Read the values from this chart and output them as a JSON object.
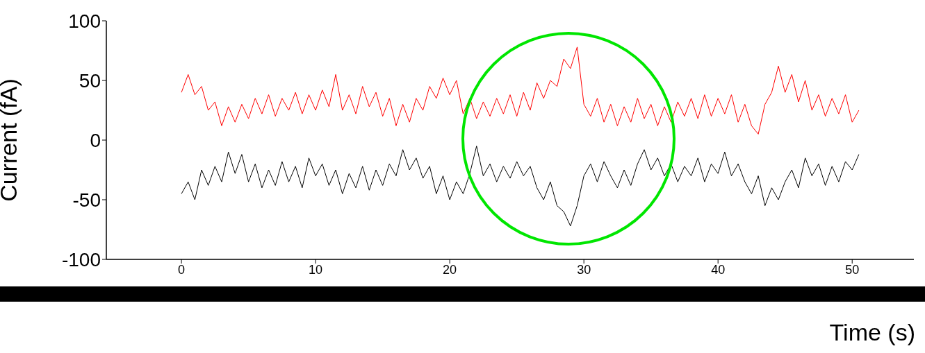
{
  "chart_data": {
    "type": "line",
    "xlabel": "Time (s)",
    "ylabel": "Current (fA)",
    "xlim": [
      -5.6,
      54.6
    ],
    "xticks": [
      0,
      10,
      20,
      30,
      40,
      50
    ],
    "ylim": [
      -100,
      100
    ],
    "yticks": [
      -100,
      -50,
      0,
      50,
      100
    ],
    "x": [
      0,
      0.5,
      1,
      1.5,
      2,
      2.5,
      3,
      3.5,
      4,
      4.5,
      5,
      5.5,
      6,
      6.5,
      7,
      7.5,
      8,
      8.5,
      9,
      9.5,
      10,
      10.5,
      11,
      11.5,
      12,
      12.5,
      13,
      13.5,
      14,
      14.5,
      15,
      15.5,
      16,
      16.5,
      17,
      17.5,
      18,
      18.5,
      19,
      19.5,
      20,
      20.5,
      21,
      21.5,
      22,
      22.5,
      23,
      23.5,
      24,
      24.5,
      25,
      25.5,
      26,
      26.5,
      27,
      27.5,
      28,
      28.5,
      29,
      29.5,
      30,
      30.5,
      31,
      31.5,
      32,
      32.5,
      33,
      33.5,
      34,
      34.5,
      35,
      35.5,
      36,
      36.5,
      37,
      37.5,
      38,
      38.5,
      39,
      39.5,
      40,
      40.5,
      41,
      41.5,
      42,
      42.5,
      43,
      43.5,
      44,
      44.5,
      45,
      45.5,
      46,
      46.5,
      47,
      47.5,
      48,
      48.5,
      49,
      49.5,
      50,
      50.5
    ],
    "series": [
      {
        "color": "#ff0000",
        "values": [
          40,
          55,
          38,
          45,
          25,
          32,
          12,
          28,
          15,
          30,
          18,
          35,
          22,
          38,
          20,
          35,
          25,
          40,
          22,
          38,
          25,
          42,
          28,
          55,
          25,
          38,
          22,
          45,
          28,
          40,
          20,
          35,
          12,
          30,
          15,
          35,
          25,
          45,
          35,
          52,
          38,
          50,
          22,
          35,
          18,
          32,
          20,
          35,
          22,
          38,
          20,
          40,
          25,
          48,
          35,
          50,
          45,
          68,
          60,
          78,
          30,
          20,
          35,
          15,
          30,
          12,
          28,
          15,
          35,
          18,
          30,
          12,
          28,
          15,
          32,
          20,
          35,
          18,
          38,
          20,
          35,
          22,
          38,
          15,
          30,
          12,
          5,
          30,
          40,
          62,
          40,
          55,
          32,
          50,
          25,
          38,
          20,
          35,
          22,
          38,
          15,
          25
        ]
      },
      {
        "color": "#000000",
        "values": [
          -45,
          -35,
          -50,
          -25,
          -38,
          -22,
          -35,
          -10,
          -28,
          -12,
          -35,
          -20,
          -40,
          -25,
          -38,
          -18,
          -35,
          -22,
          -40,
          -15,
          -30,
          -20,
          -38,
          -25,
          -45,
          -28,
          -40,
          -22,
          -42,
          -25,
          -38,
          -20,
          -30,
          -8,
          -25,
          -15,
          -32,
          -22,
          -45,
          -30,
          -50,
          -35,
          -45,
          -28,
          -5,
          -30,
          -20,
          -35,
          -22,
          -32,
          -18,
          -30,
          -22,
          -40,
          -50,
          -35,
          -55,
          -60,
          -72,
          -55,
          -30,
          -20,
          -35,
          -18,
          -30,
          -40,
          -25,
          -38,
          -20,
          -8,
          -25,
          -15,
          -30,
          -20,
          -35,
          -22,
          -30,
          -15,
          -35,
          -20,
          -28,
          -10,
          -30,
          -20,
          -35,
          -45,
          -30,
          -55,
          -40,
          -50,
          -35,
          -25,
          -40,
          -15,
          -30,
          -20,
          -38,
          -22,
          -35,
          -18,
          -25,
          -12
        ]
      }
    ]
  }
}
